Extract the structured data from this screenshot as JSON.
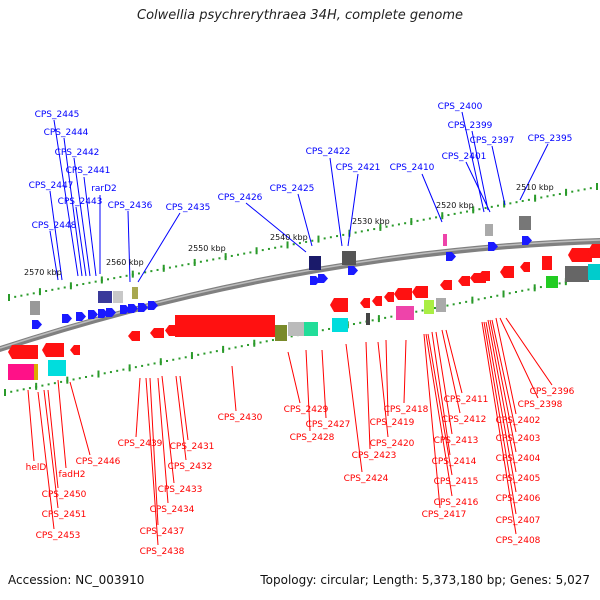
{
  "title": "Colwellia psychrerythraea 34H, complete genome",
  "footer": {
    "accession": "Accession: NC_003910",
    "summary": "Topology: circular; Length: 5,373,180 bp; Genes: 5,027"
  },
  "colors": {
    "forward": "#1a1aff",
    "reverse": "#ff1111",
    "backbone": "#808080"
  },
  "scale_labels": [
    "2510 kbp",
    "2520 kbp",
    "2530 kbp",
    "2540 kbp",
    "2550 kbp",
    "2560 kbp",
    "2570 kbp"
  ],
  "forward_genes": [
    "CPS_2395",
    "CPS_2397",
    "CPS_2399",
    "CPS_2400",
    "CPS_2401",
    "CPS_2410",
    "CPS_2421",
    "CPS_2422",
    "CPS_2425",
    "CPS_2426",
    "CPS_2435",
    "CPS_2436",
    "rarD2",
    "CPS_2441",
    "CPS_2442",
    "CPS_2443",
    "CPS_2444",
    "CPS_2445",
    "CPS_2447",
    "CPS_2448"
  ],
  "reverse_genes": [
    "CPS_2396",
    "CPS_2398",
    "CPS_2402",
    "CPS_2403",
    "CPS_2404",
    "CPS_2405",
    "CPS_2406",
    "CPS_2407",
    "CPS_2408",
    "CPS_2411",
    "CPS_2412",
    "CPS_2413",
    "CPS_2414",
    "CPS_2415",
    "CPS_2416",
    "CPS_2417",
    "CPS_2418",
    "CPS_2419",
    "CPS_2420",
    "CPS_2423",
    "CPS_2424",
    "CPS_2427",
    "CPS_2428",
    "CPS_2429",
    "CPS_2430",
    "CPS_2431",
    "CPS_2432",
    "CPS_2433",
    "CPS_2434",
    "CPS_2437",
    "CPS_2438",
    "CPS_2439",
    "CPS_2446",
    "fadH2",
    "helD",
    "CPS_2450",
    "CPS_2451",
    "CPS_2453"
  ]
}
